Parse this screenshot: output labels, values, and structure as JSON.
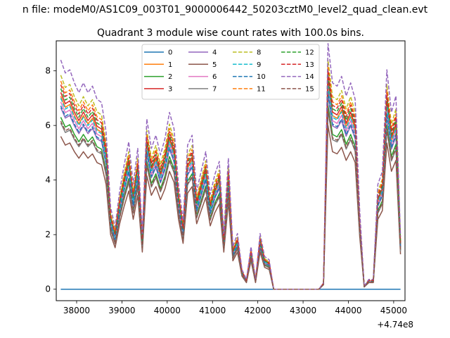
{
  "suptitle": "n file: modeM0/AS1C09_003T01_9000006442_50203cztM0_level2_quad_clean.evt",
  "chart_data": {
    "type": "line",
    "title": "Quadrant 3 module wise count rates with 100.0s bins.",
    "xlabel": "",
    "ylabel": "",
    "x_offset_label": "+4.74e8",
    "xlim": [
      37550,
      45250
    ],
    "ylim": [
      -0.42,
      9.1
    ],
    "xticks": [
      38000,
      39000,
      40000,
      41000,
      42000,
      43000,
      44000,
      45000
    ],
    "yticks": [
      0,
      2,
      4,
      6,
      8
    ],
    "grid": false,
    "legend_position": "top-center",
    "legend_columns": 4,
    "colors": [
      "#1f77b4",
      "#ff7f0e",
      "#2ca02c",
      "#d62728",
      "#9467bd",
      "#8c564b",
      "#e377c2",
      "#7f7f7f",
      "#bcbd22",
      "#17becf",
      "#1f77b4",
      "#ff7f0e",
      "#2ca02c",
      "#d62728",
      "#9467bd",
      "#8c564b"
    ],
    "x": [
      37650,
      37750,
      37850,
      37950,
      38050,
      38150,
      38250,
      38350,
      38450,
      38550,
      38650,
      38750,
      38850,
      38950,
      39050,
      39150,
      39250,
      39350,
      39450,
      39550,
      39650,
      39750,
      39850,
      39950,
      40050,
      40150,
      40250,
      40350,
      40450,
      40550,
      40650,
      40750,
      40850,
      40950,
      41050,
      41150,
      41250,
      41350,
      41450,
      41550,
      41650,
      41750,
      41850,
      41950,
      42050,
      42150,
      42250,
      42350,
      42450,
      42550,
      42650,
      42750,
      42850,
      42950,
      43050,
      43150,
      43250,
      43350,
      43450,
      43550,
      43650,
      43750,
      43850,
      43950,
      44050,
      44150,
      44250,
      44350,
      44450,
      44550,
      44650,
      44750,
      44850,
      44950,
      45050,
      45150
    ],
    "base_profile": [
      7.0,
      6.6,
      6.7,
      6.3,
      6.0,
      6.3,
      6.0,
      6.2,
      5.8,
      5.7,
      4.8,
      2.5,
      1.9,
      3.0,
      3.8,
      4.5,
      3.2,
      4.3,
      1.7,
      5.2,
      4.3,
      4.7,
      4.1,
      4.6,
      5.4,
      4.9,
      3.2,
      2.1,
      4.4,
      4.7,
      3.0,
      3.6,
      4.2,
      2.9,
      3.5,
      3.9,
      1.7,
      4.0,
      1.3,
      1.7,
      0.6,
      0.3,
      1.3,
      0.3,
      1.7,
      1.0,
      0.9,
      0.0,
      0.0,
      0.0,
      0.0,
      0.0,
      0.0,
      0.0,
      0.0,
      0.0,
      0.0,
      0.0,
      0.2,
      7.5,
      6.3,
      6.2,
      6.5,
      5.9,
      6.3,
      5.8,
      2.4,
      0.1,
      0.3,
      0.3,
      3.2,
      3.6,
      6.7,
      5.4,
      5.9,
      1.6
    ],
    "series": [
      {
        "name": "0",
        "style": "solid",
        "scale": 0
      },
      {
        "name": "1",
        "style": "solid",
        "scale": 1.01
      },
      {
        "name": "2",
        "style": "solid",
        "scale": 0.9
      },
      {
        "name": "3",
        "style": "solid",
        "scale": 1.03
      },
      {
        "name": "4",
        "style": "solid",
        "scale": 0.95
      },
      {
        "name": "5",
        "style": "solid",
        "scale": 0.8
      },
      {
        "name": "6",
        "style": "solid",
        "scale": 0.98
      },
      {
        "name": "7",
        "style": "solid",
        "scale": 0.87
      },
      {
        "name": "8",
        "style": "dashed",
        "scale": 1.12
      },
      {
        "name": "9",
        "style": "dashed",
        "scale": 1.0
      },
      {
        "name": "10",
        "style": "dashed",
        "scale": 0.96
      },
      {
        "name": "11",
        "style": "dashed",
        "scale": 1.09
      },
      {
        "name": "12",
        "style": "dashed",
        "scale": 1.05
      },
      {
        "name": "13",
        "style": "dashed",
        "scale": 1.07
      },
      {
        "name": "14",
        "style": "dashed",
        "scale": 1.2
      },
      {
        "name": "15",
        "style": "dashed",
        "scale": 0.88
      }
    ]
  }
}
